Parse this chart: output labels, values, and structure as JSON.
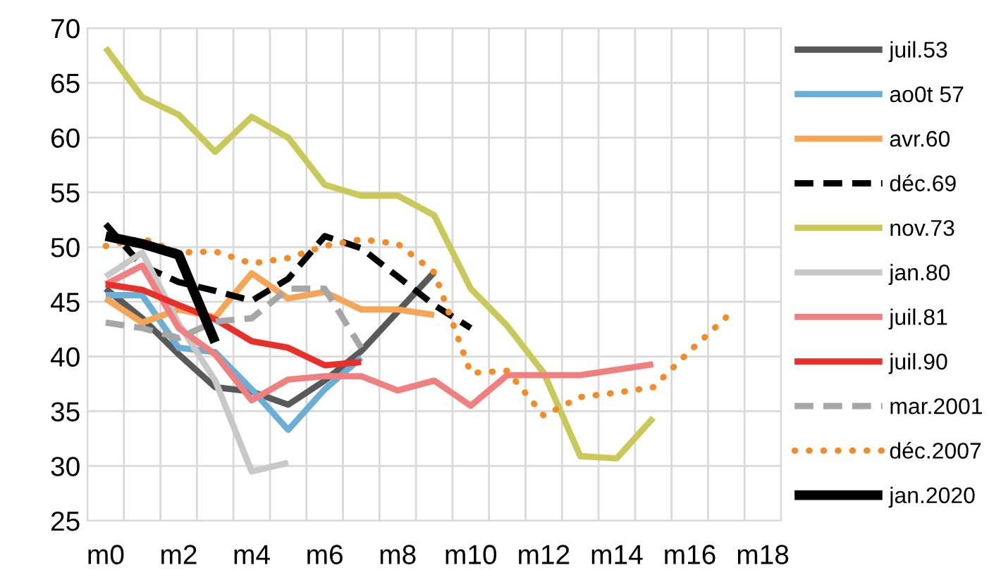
{
  "chart_data": {
    "type": "line",
    "categories": [
      "m0",
      null,
      "m2",
      null,
      "m4",
      null,
      "m6",
      null,
      "m8",
      null,
      "m10",
      null,
      "m12",
      null,
      "m14",
      null,
      "m16",
      null,
      "m18"
    ],
    "ylim": [
      25,
      70
    ],
    "yticks": [
      25,
      30,
      35,
      40,
      45,
      50,
      55,
      60,
      65,
      70
    ],
    "grid": true,
    "legend": "right",
    "marker": "none",
    "series": [
      {
        "name": "juil.53",
        "color": "#595959",
        "values": [
          46.2,
          43.5,
          40.2,
          37.2,
          36.8,
          35.6,
          37.8,
          40.5,
          44.1,
          47.7,
          null,
          null,
          null,
          null,
          null,
          null,
          null,
          null,
          null
        ]
      },
      {
        "name": "ao0t 57",
        "color": "#6baed6",
        "values": [
          45.6,
          45.6,
          40.8,
          40.4,
          37.0,
          33.3,
          37.0,
          39.9,
          null,
          null,
          null,
          null,
          null,
          null,
          null,
          null,
          null,
          null,
          null
        ]
      },
      {
        "name": "avr.60",
        "color": "#f4a556",
        "values": [
          45.3,
          43.1,
          44.3,
          43.6,
          47.6,
          45.3,
          45.9,
          44.3,
          44.3,
          43.8,
          null,
          null,
          null,
          null,
          null,
          null,
          null,
          null,
          null
        ]
      },
      {
        "name": "déc.69",
        "color": "#000000",
        "line_style": "dashed",
        "values": [
          52.1,
          48.3,
          46.8,
          46.0,
          45.1,
          47.1,
          51.0,
          49.9,
          47.3,
          44.7,
          42.6,
          null,
          null,
          null,
          null,
          null,
          null,
          null,
          null
        ]
      },
      {
        "name": "nov.73",
        "color": "#c9c95a",
        "values": [
          68.2,
          63.7,
          62.1,
          58.7,
          61.9,
          60.0,
          55.7,
          54.7,
          54.7,
          52.9,
          46.2,
          42.8,
          38.5,
          30.9,
          30.7,
          34.4,
          null,
          null,
          null
        ]
      },
      {
        "name": "jan.80",
        "color": "#c8c8c8",
        "values": [
          47.3,
          49.5,
          43.0,
          37.8,
          29.5,
          30.3,
          null,
          null,
          null,
          null,
          null,
          null,
          null,
          null,
          null,
          null,
          null,
          null,
          null
        ]
      },
      {
        "name": "juil.81",
        "color": "#f08080",
        "values": [
          46.6,
          48.3,
          42.6,
          40.2,
          36.0,
          37.9,
          38.2,
          38.2,
          36.9,
          37.8,
          35.5,
          38.3,
          38.3,
          38.3,
          38.8,
          39.3,
          null,
          null,
          null
        ]
      },
      {
        "name": "juil.90",
        "color": "#e8302a",
        "values": [
          46.6,
          46.1,
          44.7,
          43.4,
          41.4,
          40.8,
          39.2,
          39.5,
          null,
          null,
          null,
          null,
          null,
          null,
          null,
          null,
          null,
          null,
          null
        ]
      },
      {
        "name": "mar.2001",
        "color": "#a6a6a6",
        "line_style": "dashed",
        "values": [
          43.1,
          42.6,
          41.7,
          43.2,
          43.5,
          46.2,
          46.2,
          40.8,
          null,
          null,
          null,
          null,
          null,
          null,
          null,
          null,
          null,
          null,
          null
        ]
      },
      {
        "name": "déc.2007",
        "color": "#f28c28",
        "line_style": "dotted",
        "values": [
          50.1,
          50.8,
          49.5,
          49.6,
          48.5,
          49.0,
          50.1,
          50.7,
          50.3,
          47.7,
          38.5,
          38.7,
          34.6,
          36.3,
          36.7,
          37.2,
          40.5,
          43.6,
          null
        ]
      },
      {
        "name": "jan.2020",
        "color": "#000000",
        "values": [
          51.0,
          50.3,
          49.3,
          41.3,
          null,
          null,
          null,
          null,
          null,
          null,
          null,
          null,
          null,
          null,
          null,
          null,
          null,
          null,
          null
        ]
      }
    ]
  }
}
